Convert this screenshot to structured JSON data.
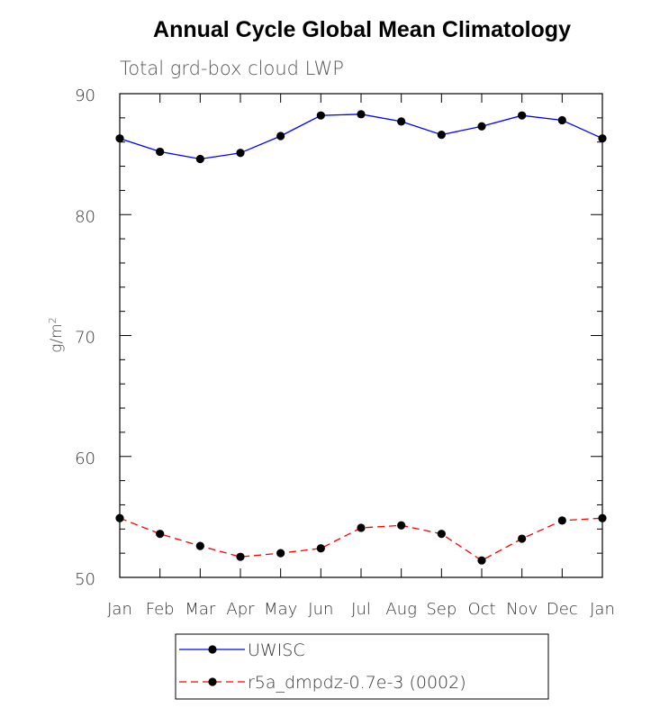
{
  "chart_data": {
    "type": "line",
    "title": "Annual Cycle Global Mean Climatology",
    "subtitle": "Total grd-box cloud LWP",
    "xlabel": "",
    "ylabel_base": "g/m",
    "ylabel_sup": "2",
    "categories": [
      "Jan",
      "Feb",
      "Mar",
      "Apr",
      "May",
      "Jun",
      "Jul",
      "Aug",
      "Sep",
      "Oct",
      "Nov",
      "Dec",
      "Jan"
    ],
    "yticks": [
      "50",
      "60",
      "70",
      "80",
      "90"
    ],
    "ylim": [
      50,
      90
    ],
    "series": [
      {
        "name": "UWISC",
        "color": "#0000ff",
        "dash": "solid",
        "values": [
          86.3,
          85.2,
          84.6,
          85.1,
          86.5,
          88.2,
          88.3,
          87.7,
          86.6,
          87.3,
          88.2,
          87.8,
          86.3
        ]
      },
      {
        "name": "r5a_dmpdz-0.7e-3 (0002)",
        "color": "#ff0000",
        "dash": "dashed",
        "values": [
          54.9,
          53.6,
          52.6,
          51.7,
          52.0,
          52.4,
          54.1,
          54.3,
          53.6,
          51.4,
          53.2,
          54.7,
          54.9
        ]
      }
    ],
    "legend_position": "bottom"
  }
}
